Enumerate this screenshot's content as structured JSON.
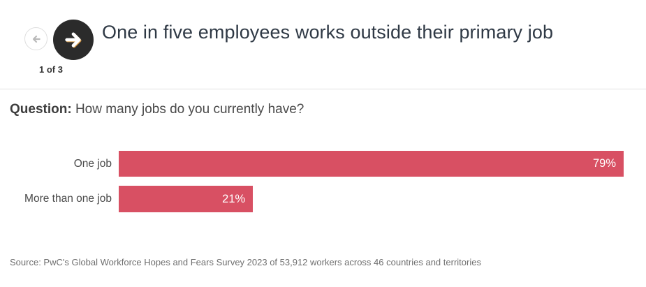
{
  "nav": {
    "counter": "1 of 3",
    "back_icon": "arrow-left",
    "forward_icon": "arrow-right"
  },
  "header": {
    "title": "One in five employees works outside their primary job"
  },
  "question": {
    "label": "Question:",
    "text": " How many jobs do you currently have?"
  },
  "chart_data": {
    "type": "bar",
    "orientation": "horizontal",
    "categories": [
      "One job",
      "More than one job"
    ],
    "values": [
      79,
      21
    ],
    "value_labels": [
      "79%",
      "21%"
    ],
    "scale_max": 79,
    "bar_color": "#d85063",
    "value_label_color": "#ffffff",
    "grid": false,
    "legend": false
  },
  "footer": {
    "source": "Source: PwC's Global Workforce Hopes and Fears Survey 2023 of 53,912 workers across 46 countries and territories"
  },
  "colors": {
    "title": "#2f3945",
    "text": "#4a4a4a",
    "source": "#6f6f6f",
    "nav_button_bg": "#2b2b2b",
    "divider": "#e2e2e2",
    "accent": "#d85063"
  }
}
